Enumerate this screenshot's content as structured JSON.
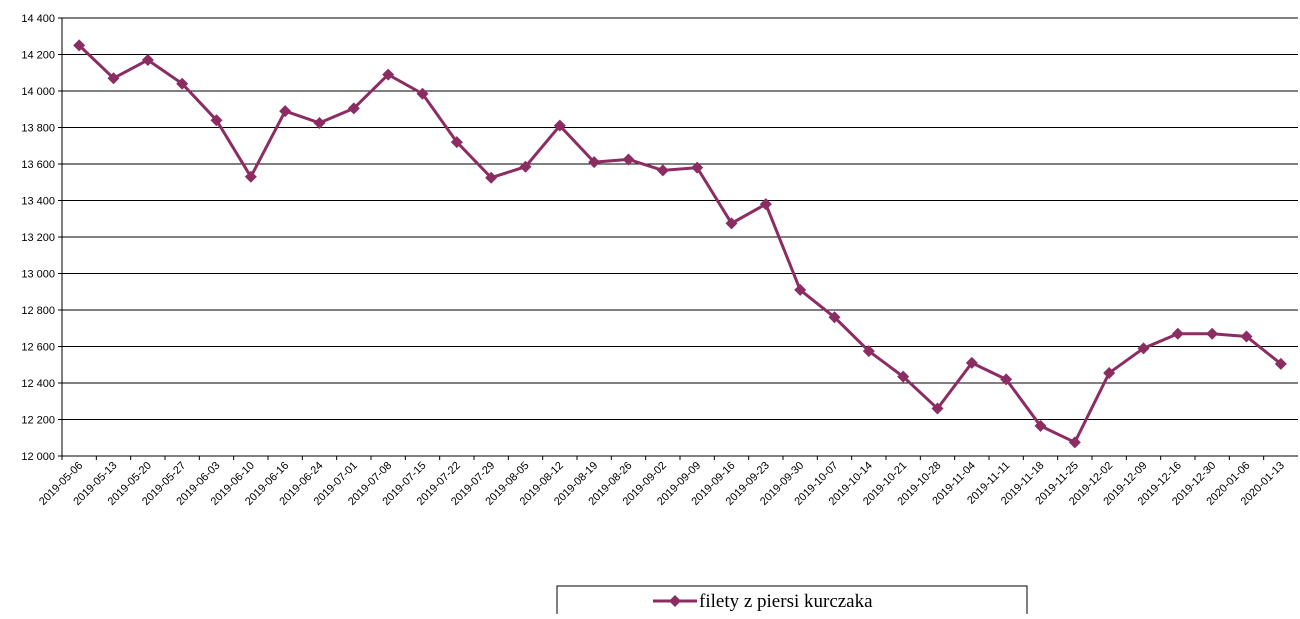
{
  "chart_data": {
    "type": "line",
    "categories": [
      "2019-05-06",
      "2019-05-13",
      "2019-05-20",
      "2019-05-27",
      "2019-06-03",
      "2019-06-10",
      "2019-06-16",
      "2019-06-24",
      "2019-07-01",
      "2019-07-08",
      "2019-07-15",
      "2019-07-22",
      "2019-07-29",
      "2019-08-05",
      "2019-08-12",
      "2019-08-19",
      "2019-08-26",
      "2019-09-02",
      "2019-09-09",
      "2019-09-16",
      "2019-09-23",
      "2019-09-30",
      "2019-10-07",
      "2019-10-14",
      "2019-10-21",
      "2019-10-28",
      "2019-11-04",
      "2019-11-11",
      "2019-11-18",
      "2019-11-25",
      "2019-12-02",
      "2019-12-09",
      "2019-12-16",
      "2019-12-30",
      "2020-01-06",
      "2020-01-13"
    ],
    "series": [
      {
        "name": "filety z piersi kurczaka",
        "color": "#8b2c62",
        "values": [
          14250,
          14070,
          14170,
          14040,
          13840,
          13530,
          13890,
          13825,
          13905,
          14090,
          13985,
          13720,
          13525,
          13585,
          13810,
          13610,
          13625,
          13565,
          13580,
          13275,
          13380,
          12910,
          12760,
          12575,
          12435,
          12260,
          12510,
          12420,
          12165,
          12075,
          12455,
          12590,
          12670,
          12670,
          12655,
          12505
        ]
      }
    ],
    "ylim": [
      12000,
      14400
    ],
    "yticks": [
      {
        "value": 12000,
        "label": "12 000"
      },
      {
        "value": 12200,
        "label": "12 200"
      },
      {
        "value": 12400,
        "label": "12 400"
      },
      {
        "value": 12600,
        "label": "12 600"
      },
      {
        "value": 12800,
        "label": "12 800"
      },
      {
        "value": 13000,
        "label": "13 000"
      },
      {
        "value": 13200,
        "label": "13 200"
      },
      {
        "value": 13400,
        "label": "13 400"
      },
      {
        "value": 13600,
        "label": "13 600"
      },
      {
        "value": 13800,
        "label": "13 800"
      },
      {
        "value": 14000,
        "label": "14 000"
      },
      {
        "value": 14200,
        "label": "14 200"
      },
      {
        "value": 14400,
        "label": "14 400"
      }
    ],
    "grid": true,
    "legend": "bottom"
  }
}
